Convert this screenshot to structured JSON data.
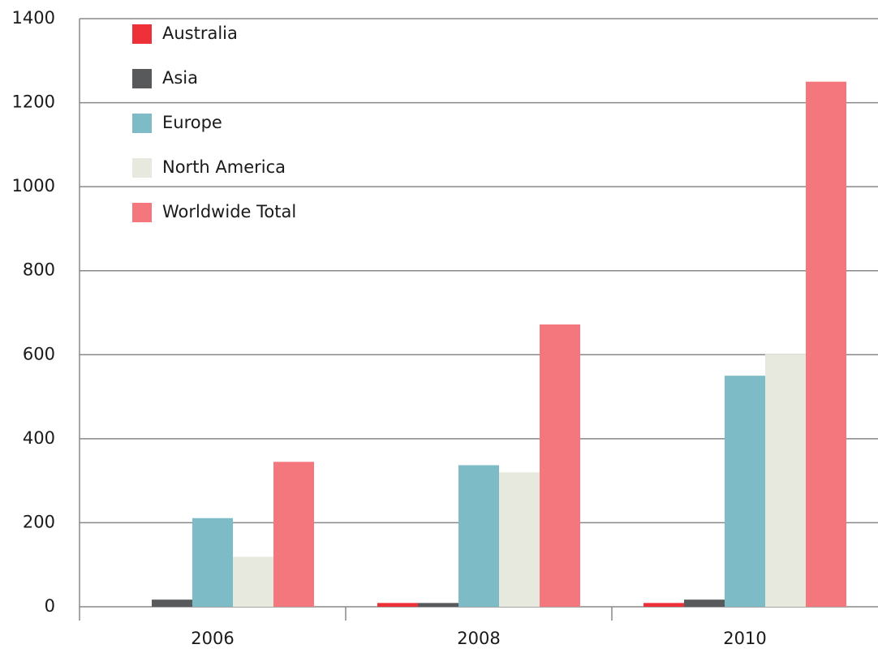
{
  "chart_data": {
    "type": "bar",
    "categories": [
      "2006",
      "2008",
      "2010"
    ],
    "series": [
      {
        "name": "Australia",
        "color": "#ee3039",
        "values": [
          0,
          9,
          9
        ]
      },
      {
        "name": "Asia",
        "color": "#58595b",
        "values": [
          17,
          9,
          17
        ]
      },
      {
        "name": "Europe",
        "color": "#7dbcc6",
        "values": [
          211,
          337,
          550
        ]
      },
      {
        "name": "North America",
        "color": "#e8e9de",
        "values": [
          119,
          320,
          601
        ]
      },
      {
        "name": "Worldwide Total",
        "color": "#f4777d",
        "values": [
          345,
          672,
          1250
        ]
      }
    ],
    "ylim": [
      0,
      1400
    ],
    "yticks": [
      0,
      200,
      400,
      600,
      800,
      1000,
      1200,
      1400
    ],
    "grid": true,
    "legend": "top-left"
  }
}
